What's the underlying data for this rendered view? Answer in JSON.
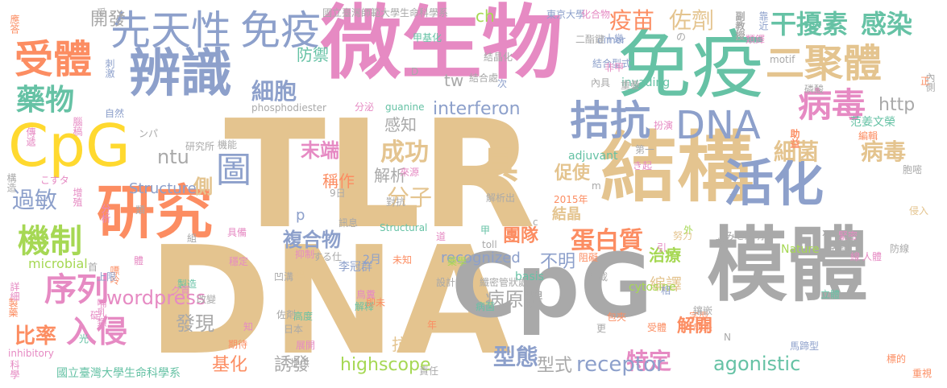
{
  "palette": {
    "tan": "#e4c48f",
    "gray": "#a9a9a9",
    "pink": "#e68ac3",
    "green": "#66c2a5",
    "blue": "#8da0cb",
    "orange": "#fc8d62",
    "yellow": "#ffd92f",
    "lime": "#a6d854"
  },
  "words": [
    {
      "text": "TLR",
      "color": "tan"
    },
    {
      "text": "DNA",
      "color": "tan"
    },
    {
      "text": "微生物",
      "color": "pink"
    },
    {
      "text": "免疫",
      "color": "green"
    },
    {
      "text": "模體",
      "color": "gray"
    },
    {
      "text": "結構",
      "color": "tan"
    },
    {
      "text": "CpG",
      "color": "gray"
    },
    {
      "text": "研究",
      "color": "orange"
    },
    {
      "text": "辨識",
      "color": "blue"
    },
    {
      "text": "CpG",
      "color": "yellow"
    },
    {
      "text": "活化",
      "color": "blue"
    },
    {
      "text": "先天性",
      "color": "blue"
    },
    {
      "text": "免疫",
      "color": "blue"
    },
    {
      "text": "受體",
      "color": "orange"
    },
    {
      "text": "二聚體",
      "color": "tan"
    },
    {
      "text": "拮抗",
      "color": "blue"
    },
    {
      "text": "DNA",
      "color": "blue"
    },
    {
      "text": "病毒",
      "color": "pink"
    },
    {
      "text": "干擾素",
      "color": "green"
    },
    {
      "text": "感染",
      "color": "green"
    },
    {
      "text": "藥物",
      "color": "green"
    },
    {
      "text": "細胞",
      "color": "blue"
    },
    {
      "text": "疫苗",
      "color": "orange"
    },
    {
      "text": "佐劑",
      "color": "tan"
    },
    {
      "text": "細菌",
      "color": "tan"
    },
    {
      "text": "病毒",
      "color": "tan"
    },
    {
      "text": "機制",
      "color": "lime"
    },
    {
      "text": "序列",
      "color": "pink"
    },
    {
      "text": "入侵",
      "color": "pink"
    },
    {
      "text": "過敏",
      "color": "blue"
    },
    {
      "text": "比率",
      "color": "orange"
    },
    {
      "text": "成功",
      "color": "tan"
    },
    {
      "text": "分子",
      "color": "tan"
    },
    {
      "text": "具",
      "color": "tan"
    },
    {
      "text": "末端",
      "color": "pink"
    },
    {
      "text": "蛋白質",
      "color": "orange"
    },
    {
      "text": "型態",
      "color": "blue"
    },
    {
      "text": "特定",
      "color": "pink"
    },
    {
      "text": "圖",
      "color": "blue"
    },
    {
      "text": "側",
      "color": "tan"
    },
    {
      "text": "receptor",
      "color": "blue"
    },
    {
      "text": "agonistic",
      "color": "green"
    },
    {
      "text": "interferon",
      "color": "blue"
    },
    {
      "text": "highscope",
      "color": "lime"
    },
    {
      "text": "wordpress",
      "color": "pink"
    },
    {
      "text": "ntu",
      "color": "gray"
    },
    {
      "text": "http",
      "color": "gray"
    },
    {
      "text": "開發",
      "color": "gray"
    },
    {
      "text": "防禦",
      "color": "green"
    },
    {
      "text": "感知",
      "color": "gray"
    },
    {
      "text": "稱作",
      "color": "orange"
    },
    {
      "text": "解析",
      "color": "gray"
    },
    {
      "text": "複合物",
      "color": "blue"
    },
    {
      "text": "促使",
      "color": "tan"
    },
    {
      "text": "團隊",
      "color": "orange"
    },
    {
      "text": "結晶",
      "color": "tan"
    },
    {
      "text": "不明",
      "color": "blue"
    },
    {
      "text": "治療",
      "color": "lime"
    },
    {
      "text": "編譯",
      "color": "tan"
    },
    {
      "text": "解開",
      "color": "orange"
    },
    {
      "text": "病原體",
      "color": "gray"
    },
    {
      "text": "發現",
      "color": "gray"
    },
    {
      "text": "誘發",
      "color": "gray"
    },
    {
      "text": "基化",
      "color": "orange"
    },
    {
      "text": "抗",
      "color": "tan"
    },
    {
      "text": "型式",
      "color": "gray"
    },
    {
      "text": "tw",
      "color": "gray"
    },
    {
      "text": "ch",
      "color": "lime"
    },
    {
      "text": "p",
      "color": "blue"
    },
    {
      "text": "recognized",
      "color": "blue"
    },
    {
      "text": "microbial",
      "color": "lime"
    },
    {
      "text": "Structure",
      "color": "blue"
    },
    {
      "text": "Structural",
      "color": "green"
    },
    {
      "text": "phosphodiester",
      "color": "gray"
    },
    {
      "text": "guanine",
      "color": "green"
    },
    {
      "text": "cytosine",
      "color": "lime"
    },
    {
      "text": "adjuvant",
      "color": "green"
    },
    {
      "text": "invading",
      "color": "green"
    },
    {
      "text": "Nature",
      "color": "lime"
    },
    {
      "text": "inhibitory",
      "color": "pink"
    },
    {
      "text": "basis",
      "color": "green"
    },
    {
      "text": "toll",
      "color": "gray"
    },
    {
      "text": "dimer",
      "color": "blue"
    },
    {
      "text": "motif",
      "color": "gray"
    },
    {
      "text": "國立臺灣師範大學生命科學系",
      "color": "gray"
    },
    {
      "text": "國立臺灣大學生命科學系",
      "color": "green"
    },
    {
      "text": "東京大學",
      "color": "blue"
    },
    {
      "text": "范姜文榮",
      "color": "green"
    },
    {
      "text": "李冠群",
      "color": "blue"
    },
    {
      "text": "研究所",
      "color": "gray"
    },
    {
      "text": "2015年",
      "color": "orange"
    },
    {
      "text": "2月",
      "color": "blue"
    },
    {
      "text": "9日",
      "color": "gray"
    },
    {
      "text": "結合型式",
      "color": "blue"
    },
    {
      "text": "二酯鍵",
      "color": "gray"
    },
    {
      "text": "結合處",
      "color": "gray"
    },
    {
      "text": "結晶化",
      "color": "gray"
    },
    {
      "text": "甲基化",
      "color": "green"
    },
    {
      "text": "化合物",
      "color": "pink"
    },
    {
      "text": "副教授",
      "color": "gray"
    },
    {
      "text": "靠近",
      "color": "blue"
    },
    {
      "text": "類鐸",
      "color": "pink"
    },
    {
      "text": "非甲",
      "color": "pink"
    },
    {
      "text": "十幾",
      "color": "blue"
    },
    {
      "text": "次",
      "color": "blue"
    },
    {
      "text": "內具",
      "color": "gray"
    },
    {
      "text": "重疊",
      "color": "gray"
    },
    {
      "text": "磷酸",
      "color": "gray"
    },
    {
      "text": "助益",
      "color": "orange"
    },
    {
      "text": "編輯",
      "color": "orange"
    },
    {
      "text": "扮演",
      "color": "pink"
    },
    {
      "text": "第一",
      "color": "gray"
    },
    {
      "text": "緊密",
      "color": "pink"
    },
    {
      "text": "努力",
      "color": "tan"
    },
    {
      "text": "引",
      "color": "pink"
    },
    {
      "text": "名詞",
      "color": "gray"
    },
    {
      "text": "期刊",
      "color": "gray"
    },
    {
      "text": "人體",
      "color": "pink"
    },
    {
      "text": "立體",
      "color": "green"
    },
    {
      "text": "字型",
      "color": "orange"
    },
    {
      "text": "受體",
      "color": "orange"
    },
    {
      "text": "成果",
      "color": "orange"
    },
    {
      "text": "馬蹄型",
      "color": "blue"
    },
    {
      "text": "標的",
      "color": "orange"
    },
    {
      "text": "重視",
      "color": "orange"
    },
    {
      "text": "胞嘧",
      "color": "gray"
    },
    {
      "text": "侵入",
      "color": "tan"
    },
    {
      "text": "防線",
      "color": "gray"
    },
    {
      "text": "內側",
      "color": "gray"
    },
    {
      "text": "相",
      "color": "blue"
    },
    {
      "text": "鑲嵌",
      "color": "gray"
    },
    {
      "text": "應答",
      "color": "orange"
    },
    {
      "text": "刺激",
      "color": "blue"
    },
    {
      "text": "腦稿",
      "color": "pink"
    },
    {
      "text": "傳遞",
      "color": "pink"
    },
    {
      "text": "構造",
      "color": "gray"
    },
    {
      "text": "增殖",
      "color": "pink"
    },
    {
      "text": "分析",
      "color": "pink"
    },
    {
      "text": "嘌呤",
      "color": "orange"
    },
    {
      "text": "哺乳類",
      "color": "pink"
    },
    {
      "text": "製藥",
      "color": "orange"
    },
    {
      "text": "詳細",
      "color": "pink"
    },
    {
      "text": "科學",
      "color": "pink"
    },
    {
      "text": "上限",
      "color": "blue"
    },
    {
      "text": "製造",
      "color": "green"
    },
    {
      "text": "改變",
      "color": "gray"
    },
    {
      "text": "穩定",
      "color": "pink"
    },
    {
      "text": "具備",
      "color": "pink"
    },
    {
      "text": "首",
      "color": "gray"
    },
    {
      "text": "自然",
      "color": "blue"
    },
    {
      "text": "機能",
      "color": "gray"
    },
    {
      "text": "角色",
      "color": "tan"
    },
    {
      "text": "抑制",
      "color": "pink"
    },
    {
      "text": "凹溝",
      "color": "gray"
    },
    {
      "text": "佐剤",
      "color": "gray"
    },
    {
      "text": "展開",
      "color": "pink"
    },
    {
      "text": "期待",
      "color": "orange"
    },
    {
      "text": "提供",
      "color": "gray"
    },
    {
      "text": "責任",
      "color": "gray"
    },
    {
      "text": "高度",
      "color": "green"
    },
    {
      "text": "日本",
      "color": "gray"
    },
    {
      "text": "解釋",
      "color": "green"
    },
    {
      "text": "即未",
      "color": "orange"
    },
    {
      "text": "鳥糞",
      "color": "pink"
    },
    {
      "text": "設計",
      "color": "gray"
    },
    {
      "text": "藥學",
      "color": "lime"
    },
    {
      "text": "未知",
      "color": "orange"
    },
    {
      "text": "訊息",
      "color": "gray"
    },
    {
      "text": "對抗",
      "color": "gray"
    },
    {
      "text": "來源",
      "color": "pink"
    },
    {
      "text": "解析出",
      "color": "gray"
    },
    {
      "text": "分泌",
      "color": "pink"
    },
    {
      "text": "病菌",
      "color": "green"
    },
    {
      "text": "纖密管狀處",
      "color": "gray"
    },
    {
      "text": "刊載",
      "color": "gray"
    },
    {
      "text": "阻礙",
      "color": "orange"
    },
    {
      "text": "包夾",
      "color": "orange"
    },
    {
      "text": "更",
      "color": "gray"
    },
    {
      "text": "受",
      "color": "gray"
    },
    {
      "text": "正",
      "color": "orange"
    },
    {
      "text": "線",
      "color": "pink"
    },
    {
      "text": "外",
      "color": "lime"
    },
    {
      "text": "組",
      "color": "gray"
    },
    {
      "text": "類",
      "color": "gray"
    },
    {
      "text": "體",
      "color": "pink"
    },
    {
      "text": "知",
      "color": "pink"
    },
    {
      "text": "光",
      "color": "green"
    },
    {
      "text": "年",
      "color": "orange"
    },
    {
      "text": "道",
      "color": "pink"
    },
    {
      "text": "甲",
      "color": "green"
    },
    {
      "text": "碇",
      "color": "pink"
    },
    {
      "text": "を",
      "color": "gray"
    },
    {
      "text": "が",
      "color": "pink"
    },
    {
      "text": "の",
      "color": "gray"
    },
    {
      "text": "き起",
      "color": "pink"
    },
    {
      "text": "する仕",
      "color": "gray"
    },
    {
      "text": "みを解明",
      "color": "gray"
    },
    {
      "text": "ク質",
      "color": "pink"
    },
    {
      "text": "こすタ",
      "color": "pink"
    },
    {
      "text": "ンパ",
      "color": "gray"
    },
    {
      "text": "c",
      "color": "gray"
    },
    {
      "text": "m",
      "color": "gray"
    },
    {
      "text": "D",
      "color": "gray"
    },
    {
      "text": "N",
      "color": "gray"
    },
    {
      "text": "x",
      "color": "gray"
    }
  ]
}
